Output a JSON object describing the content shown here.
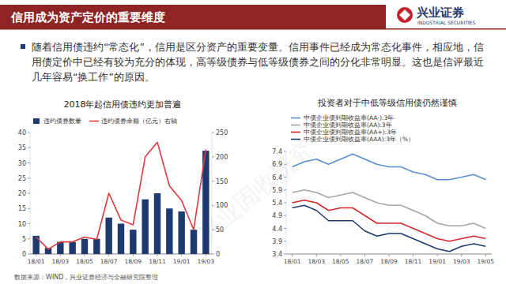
{
  "header": {
    "title": "信用成为资产定价的重要维度",
    "logo_name": "兴业证券",
    "logo_en": "INDUSTRIAL SECURITIES"
  },
  "bullet": "随着信用债违约“常态化”，信用是区分资产的重要变量。信用事件已经成为常态化事件，相应地，信用债定价中已经有较为充分的体现，高等级债券与低等级债券之间的分化非常明显。这也是信评最近几年容易“换工作”的原因。",
  "watermark": "兴业固收研究",
  "source": "数据来源：WIND，兴业证券经济与金融研究院整理",
  "chart_data": [
    {
      "type": "bar",
      "title": "2018年起信用债违约更加普遍",
      "categories": [
        "18/01",
        null,
        "18/03",
        null,
        "18/05",
        null,
        "18/07",
        null,
        "18/09",
        null,
        "18/11",
        null,
        "19/01",
        null,
        "19/03"
      ],
      "series": [
        {
          "name": "违约债券数量",
          "type": "bar",
          "color": "#1f3a6e",
          "values": [
            6,
            2,
            4,
            4,
            5,
            5,
            12,
            10,
            8,
            18,
            20,
            15,
            14,
            8,
            34
          ]
        },
        {
          "name": "违约债券余额（亿元）右轴",
          "type": "line",
          "color": "#e03a3e",
          "axis": "y2",
          "values": [
            35,
            10,
            25,
            25,
            35,
            30,
            125,
            70,
            60,
            200,
            230,
            140,
            110,
            50,
            215
          ]
        }
      ],
      "ylim": [
        0,
        40
      ],
      "yticks": [
        0,
        5,
        10,
        15,
        20,
        25,
        30,
        35,
        40
      ],
      "y2lim": [
        0,
        250
      ],
      "y2ticks": [
        0,
        50,
        100,
        150,
        200,
        250
      ],
      "legend": "top"
    },
    {
      "type": "line",
      "title": "投资者对于中低等级信用债仍然谨慎",
      "categories": [
        "18/01",
        null,
        "18/03",
        null,
        "18/05",
        null,
        "18/07",
        null,
        "18/09",
        null,
        "18/11",
        null,
        "19/01",
        null,
        "19/03",
        null,
        "19/05"
      ],
      "series": [
        {
          "name": "中债企业债到期收益率(AAA):3年（%）",
          "color": "#1f3a6e",
          "values": [
            5.2,
            5.3,
            5.1,
            4.7,
            4.7,
            4.7,
            4.3,
            4.1,
            4.2,
            4.2,
            4.0,
            3.8,
            3.6,
            3.5,
            3.7,
            3.8,
            3.7
          ]
        },
        {
          "name": "中债企业债到期收益率(AA+):3年",
          "color": "#d6282b",
          "values": [
            5.4,
            5.5,
            5.4,
            5.1,
            5.2,
            5.2,
            4.9,
            4.6,
            4.6,
            4.6,
            4.4,
            4.2,
            4.0,
            3.9,
            4.0,
            4.1,
            4.0
          ]
        },
        {
          "name": "中债企业债到期收益率(AA):3年",
          "color": "#a6a6a6",
          "values": [
            5.8,
            5.9,
            5.8,
            5.6,
            5.7,
            5.8,
            5.6,
            5.4,
            5.3,
            5.3,
            5.1,
            4.9,
            4.6,
            4.5,
            4.5,
            4.6,
            4.4
          ]
        },
        {
          "name": "中债企业债到期收益率(AA-):3年",
          "color": "#5b8fd1",
          "values": [
            6.8,
            7.0,
            7.1,
            6.9,
            7.1,
            7.3,
            7.1,
            6.9,
            6.8,
            6.8,
            6.6,
            6.5,
            6.3,
            6.3,
            6.4,
            6.5,
            6.3
          ]
        }
      ],
      "ylim": [
        3.4,
        7.4
      ],
      "yticks": [
        3.4,
        3.9,
        4.4,
        4.9,
        5.4,
        5.9,
        6.4,
        6.9,
        7.4
      ],
      "legend": "top-left"
    }
  ]
}
